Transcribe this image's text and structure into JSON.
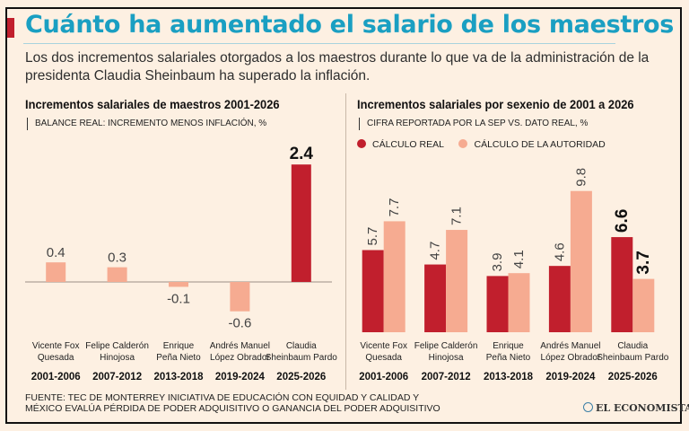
{
  "title": "Cuánto ha aumentado el salario de los maestros",
  "subtitle": "Los dos incrementos salariales otorgados a los maestros durante lo que va de la administración de la presidenta Claudia Sheinbaum ha superado la inflación.",
  "colors": {
    "real": "#c11f2d",
    "authority": "#f6ab91",
    "title": "#1a9fc2"
  },
  "chart_data": [
    {
      "type": "bar",
      "title": "Incrementos salariales de maestros 2001-2026",
      "subtitle": "BALANCE REAL: INCREMENTO MENOS INFLACIÓN, %",
      "categories": [
        {
          "name": [
            "Vicente Fox",
            "Quesada"
          ],
          "period": "2001-2006"
        },
        {
          "name": [
            "Felipe Calderón",
            "Hinojosa"
          ],
          "period": "2007-2012"
        },
        {
          "name": [
            "Enrique",
            "Peña Nieto"
          ],
          "period": "2013-2018"
        },
        {
          "name": [
            "Andrés Manuel",
            "López Obrador"
          ],
          "period": "2019-2024"
        },
        {
          "name": [
            "Claudia",
            "Sheinbaum Pardo"
          ],
          "period": "2025-2026"
        }
      ],
      "values": [
        0.4,
        0.3,
        -0.1,
        -0.6,
        2.4
      ],
      "labels": [
        "0.4",
        "0.3",
        "-0.1",
        "-0.6",
        "2.4"
      ],
      "highlight_index": 4
    },
    {
      "type": "bar",
      "title": "Incrementos salariales por sexenio de 2001 a 2026",
      "subtitle": "CIFRA REPORTADA POR LA SEP VS. DATO REAL, %",
      "legend": [
        "CÁLCULO REAL",
        "CÁLCULO DE LA AUTORIDAD"
      ],
      "legend_position": "top-left",
      "categories": [
        {
          "name": [
            "Vicente Fox",
            "Quesada"
          ],
          "period": "2001-2006"
        },
        {
          "name": [
            "Felipe Calderón",
            "Hinojosa"
          ],
          "period": "2007-2012"
        },
        {
          "name": [
            "Enrique",
            "Peña Nieto"
          ],
          "period": "2013-2018"
        },
        {
          "name": [
            "Andrés Manuel",
            "López Obrador"
          ],
          "period": "2019-2024"
        },
        {
          "name": [
            "Claudia",
            "Sheinbaum Pardo"
          ],
          "period": "2025-2026"
        }
      ],
      "series": [
        {
          "name": "CÁLCULO REAL",
          "values": [
            5.7,
            4.7,
            3.9,
            4.6,
            6.6
          ],
          "labels": [
            "5.7",
            "4.7",
            "3.9",
            "4.6",
            "6.6"
          ]
        },
        {
          "name": "CÁLCULO DE LA AUTORIDAD",
          "values": [
            7.7,
            7.1,
            4.1,
            9.8,
            3.7
          ],
          "labels": [
            "7.7",
            "7.1",
            "4.1",
            "9.8",
            "3.7"
          ]
        }
      ],
      "highlight_index": 4
    }
  ],
  "footer": {
    "line1": "FUENTE: TEC DE MONTERREY INICIATIVA DE EDUCACIÓN CON EQUIDAD Y CALIDAD Y",
    "line2": "MÉXICO EVALÚA PÉRDIDA DE PODER ADQUISITIVO O GANANCIA DEL PODER ADQUISITIVO"
  },
  "brand": "EL ECONOMISTA"
}
